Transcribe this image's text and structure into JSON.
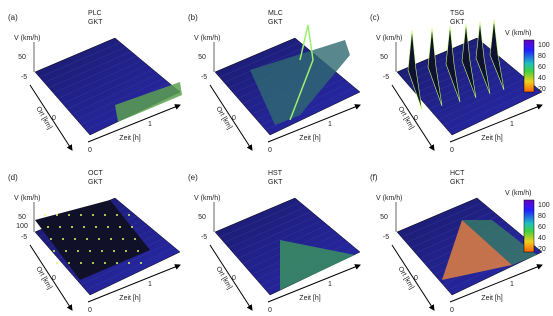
{
  "panels": [
    {
      "label": "(a)",
      "model": "PLC",
      "method": "GKT",
      "v_label": "V (km/h)",
      "v_ticks": [
        "50"
      ],
      "ort_label": "Ort [km]",
      "ort_ticks": [
        "-5",
        "0"
      ],
      "zeit_label": "Zeit [h]",
      "zeit_ticks": [
        "0",
        "1"
      ]
    },
    {
      "label": "(b)",
      "model": "MLC",
      "method": "GKT",
      "v_label": "V (km/h)",
      "v_ticks": [
        "50"
      ],
      "ort_label": "Ort [km]",
      "ort_ticks": [
        "-5",
        "0"
      ],
      "zeit_label": "Zeit [h]",
      "zeit_ticks": [
        "0",
        "1"
      ]
    },
    {
      "label": "(c)",
      "model": "TSG",
      "method": "GKT",
      "v_label": "V (km/h)",
      "v_ticks": [
        "50"
      ],
      "ort_label": "Ort [km]",
      "ort_ticks": [
        "-5",
        "0"
      ],
      "zeit_label": "Zeit [h]",
      "zeit_ticks": [
        "0",
        "1"
      ]
    },
    {
      "label": "(d)",
      "model": "OCT",
      "method": "GKT",
      "v_label": "V (km/h)",
      "v_ticks": [
        "50",
        "100"
      ],
      "ort_label": "Ort [km]",
      "ort_ticks": [
        "-5",
        "0"
      ],
      "zeit_label": "Zeit [h]",
      "zeit_ticks": [
        "0",
        "1"
      ]
    },
    {
      "label": "(e)",
      "model": "HST",
      "method": "GKT",
      "v_label": "V (km/h)",
      "v_ticks": [
        "50"
      ],
      "ort_label": "Ort [km]",
      "ort_ticks": [
        "-5",
        "0"
      ],
      "zeit_label": "Zeit [h]",
      "zeit_ticks": [
        "0",
        "1"
      ]
    },
    {
      "label": "(f)",
      "model": "HCT",
      "method": "GKT",
      "v_label": "V (km/h)",
      "v_ticks": [
        "50"
      ],
      "ort_label": "Ort [km]",
      "ort_ticks": [
        "-5",
        "0"
      ],
      "zeit_label": "Zeit [h]",
      "zeit_ticks": [
        "0",
        "1"
      ]
    }
  ],
  "colorbars": [
    {
      "title": "V (km/h)",
      "ticks": [
        "100",
        "80",
        "60",
        "40",
        "20"
      ]
    },
    {
      "title": "V (km/h)",
      "ticks": [
        "100",
        "80",
        "60",
        "40",
        "20"
      ]
    }
  ]
}
